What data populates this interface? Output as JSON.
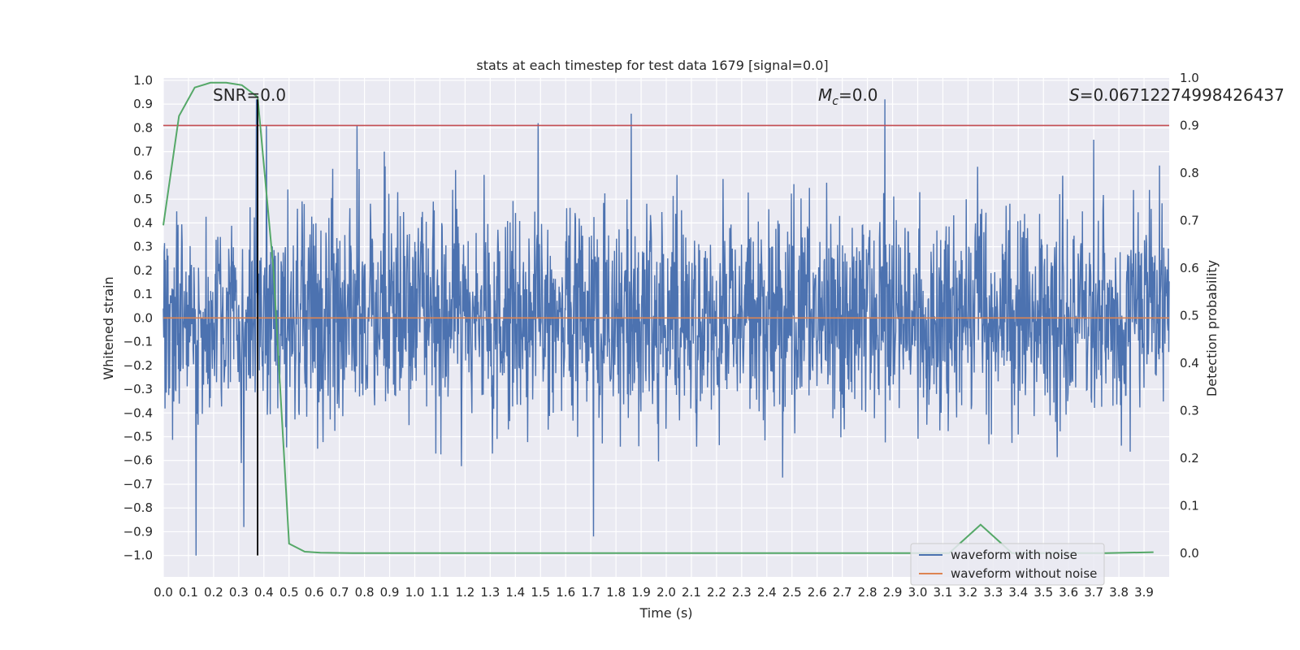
{
  "chart_data": {
    "type": "line",
    "title": "stats at each timestep for test data 1679 [signal=0.0]",
    "xlabel": "Time (s)",
    "ylabel": "Whitened strain",
    "y2label": "Detection probability",
    "xlim": [
      0.0,
      4.0
    ],
    "ylim": [
      -1.09,
      1.01
    ],
    "y2lim": [
      -0.05,
      1.0
    ],
    "xticks": [
      "0.0",
      "0.1",
      "0.2",
      "0.3",
      "0.4",
      "0.5",
      "0.6",
      "0.7",
      "0.8",
      "0.9",
      "1.0",
      "1.1",
      "1.2",
      "1.3",
      "1.4",
      "1.5",
      "1.6",
      "1.7",
      "1.8",
      "1.9",
      "2.0",
      "2.1",
      "2.2",
      "2.3",
      "2.4",
      "2.5",
      "2.6",
      "2.7",
      "2.8",
      "2.9",
      "3.0",
      "3.1",
      "3.2",
      "3.3",
      "3.4",
      "3.5",
      "3.6",
      "3.7",
      "3.8",
      "3.9"
    ],
    "yticks": [
      "1.0",
      "0.9",
      "0.8",
      "0.7",
      "0.6",
      "0.5",
      "0.4",
      "0.3",
      "0.2",
      "0.1",
      "0.0",
      "−0.1",
      "−0.2",
      "−0.3",
      "−0.4",
      "−0.5",
      "−0.6",
      "−0.7",
      "−0.8",
      "−0.9",
      "−1.0"
    ],
    "y2ticks": [
      "0.0",
      "0.1",
      "0.2",
      "0.3",
      "0.4",
      "0.5",
      "0.6",
      "0.7",
      "0.8",
      "0.9",
      "1.0"
    ],
    "annotations": {
      "snr": "SNR=0.0",
      "mc_symbol": "M",
      "mc_sub": "c",
      "mc_value": "=0.0",
      "s_symbol": "S",
      "s_value": "=0.06712274998426437"
    },
    "threshold": 0.9,
    "marker_time": 0.375,
    "series": [
      {
        "name": "waveform with noise",
        "color": "#4c72b0",
        "noise_std": 0.22,
        "spike_peaks": [
          [
            0.13,
            -1.0
          ],
          [
            0.32,
            -0.88
          ],
          [
            0.37,
            0.92
          ],
          [
            0.41,
            0.81
          ],
          [
            0.77,
            0.81
          ],
          [
            1.49,
            0.82
          ],
          [
            1.71,
            -0.92
          ],
          [
            1.86,
            0.86
          ],
          [
            2.87,
            0.92
          ],
          [
            3.7,
            0.75
          ]
        ]
      },
      {
        "name": "waveform without noise",
        "color": "#dd8452",
        "value": 0.0
      }
    ],
    "detection_probability": {
      "color": "#55a868",
      "t": [
        0.0,
        0.0625,
        0.125,
        0.1875,
        0.25,
        0.3125,
        0.375,
        0.4375,
        0.5,
        0.5625,
        0.625,
        0.75,
        1.0,
        1.5,
        2.0,
        2.5,
        3.0,
        3.125,
        3.25,
        3.375,
        3.5,
        3.75,
        3.9375
      ],
      "p": [
        0.69,
        0.92,
        0.98,
        0.99,
        0.99,
        0.985,
        0.96,
        0.6,
        0.02,
        0.003,
        0.001,
        0.0,
        0.0,
        0.0,
        0.0,
        0.0,
        0.0,
        0.0,
        0.06,
        0.0,
        0.0,
        0.0,
        0.002
      ]
    }
  }
}
